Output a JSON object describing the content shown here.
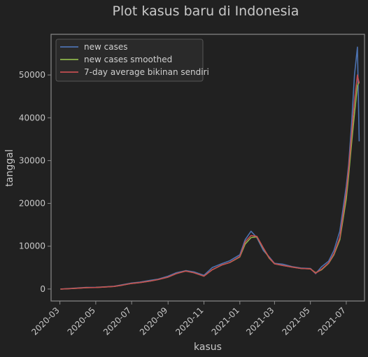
{
  "chart_data": {
    "type": "line",
    "title": "Plot kasus baru di Indonesia",
    "xlabel": "kasus",
    "ylabel": "tanggal",
    "x_range": [
      "2020-02-15",
      "2021-08-01"
    ],
    "ylim": [
      -2800,
      59500
    ],
    "x_ticks": [
      "2020-03",
      "2020-05",
      "2020-07",
      "2020-09",
      "2020-11",
      "2021-01",
      "2021-03",
      "2021-05",
      "2021-07"
    ],
    "y_ticks": [
      0,
      10000,
      20000,
      30000,
      40000,
      50000
    ],
    "grid": false,
    "legend_position": "top-left",
    "x": [
      "2020-03-02",
      "2020-03-15",
      "2020-04-01",
      "2020-04-15",
      "2020-05-01",
      "2020-05-15",
      "2020-06-01",
      "2020-06-15",
      "2020-07-01",
      "2020-07-15",
      "2020-08-01",
      "2020-08-15",
      "2020-09-01",
      "2020-09-15",
      "2020-10-01",
      "2020-10-15",
      "2020-11-01",
      "2020-11-15",
      "2020-12-01",
      "2020-12-15",
      "2021-01-01",
      "2021-01-10",
      "2021-01-20",
      "2021-01-30",
      "2021-02-10",
      "2021-02-20",
      "2021-03-01",
      "2021-03-15",
      "2021-04-01",
      "2021-04-15",
      "2021-05-01",
      "2021-05-10",
      "2021-05-20",
      "2021-06-01",
      "2021-06-10",
      "2021-06-20",
      "2021-07-01",
      "2021-07-05",
      "2021-07-10",
      "2021-07-15",
      "2021-07-20",
      "2021-07-23"
    ],
    "series": [
      {
        "name": "new cases",
        "color": "#4c72b0",
        "values": [
          2,
          100,
          250,
          380,
          400,
          500,
          650,
          1000,
          1400,
          1600,
          2000,
          2300,
          3000,
          3800,
          4300,
          4000,
          3200,
          5000,
          5900,
          6600,
          8000,
          11500,
          13500,
          12000,
          9000,
          7500,
          6000,
          5800,
          5200,
          4900,
          4800,
          3600,
          5200,
          6500,
          9000,
          13500,
          24000,
          29000,
          38500,
          50000,
          56500,
          34500
        ]
      },
      {
        "name": "new cases smoothed",
        "color": "#8db54a",
        "values": [
          2,
          60,
          200,
          320,
          350,
          450,
          600,
          900,
          1300,
          1500,
          1850,
          2200,
          2800,
          3600,
          4200,
          3800,
          3000,
          4500,
          5600,
          6200,
          7500,
          10500,
          12000,
          12200,
          9500,
          7200,
          5900,
          5500,
          5100,
          4800,
          4700,
          3800,
          4500,
          6000,
          8000,
          11500,
          21000,
          26500,
          34000,
          41000,
          47500,
          48500
        ]
      },
      {
        "name": "7-day average bikinan sendiri",
        "color": "#c44e52",
        "values": [
          2,
          60,
          200,
          320,
          350,
          450,
          600,
          900,
          1300,
          1500,
          1850,
          2200,
          2800,
          3600,
          4200,
          3800,
          3000,
          4500,
          5600,
          6200,
          7600,
          11000,
          12500,
          12300,
          9600,
          7300,
          5900,
          5500,
          5100,
          4800,
          4700,
          3700,
          4600,
          6100,
          8200,
          12000,
          22500,
          28000,
          36000,
          44000,
          50000,
          48000
        ]
      }
    ]
  }
}
